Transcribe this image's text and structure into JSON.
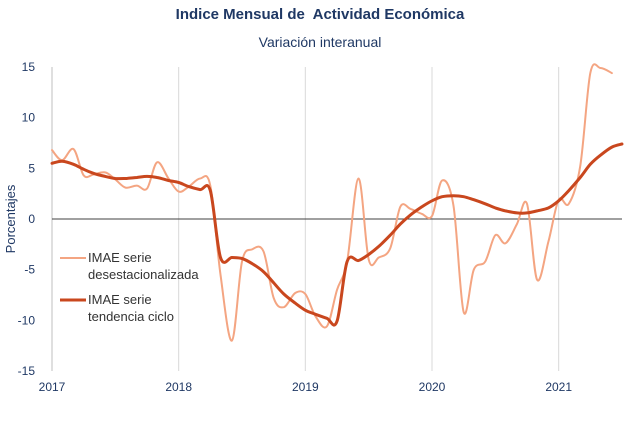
{
  "chart_data": {
    "type": "line",
    "title": "Indice Mensual de  Actividad Económica",
    "subtitle": "Variación interanual",
    "ylabel": "Porcentajes",
    "xlabel": "",
    "ylim": [
      -15,
      15
    ],
    "yticks": [
      15,
      10,
      5,
      0,
      -5,
      -10,
      -15
    ],
    "xlim": [
      2017,
      2021.5
    ],
    "xticks": [
      2017,
      2018,
      2019,
      2020,
      2021
    ],
    "grid": "vertical",
    "series": [
      {
        "name": "IMAE serie desestacionalizada",
        "name_lines": [
          "IMAE serie",
          "desestacionalizada"
        ],
        "color": "#f4a582",
        "points": [
          [
            2017.0,
            6.8
          ],
          [
            2017.08,
            5.8
          ],
          [
            2017.17,
            6.9
          ],
          [
            2017.25,
            4.3
          ],
          [
            2017.33,
            4.4
          ],
          [
            2017.42,
            4.6
          ],
          [
            2017.5,
            3.9
          ],
          [
            2017.58,
            3.1
          ],
          [
            2017.67,
            3.3
          ],
          [
            2017.75,
            3.0
          ],
          [
            2017.83,
            5.6
          ],
          [
            2017.92,
            4.0
          ],
          [
            2018.0,
            2.7
          ],
          [
            2018.08,
            3.2
          ],
          [
            2018.17,
            4.0
          ],
          [
            2018.25,
            3.3
          ],
          [
            2018.33,
            -5.5
          ],
          [
            2018.42,
            -12.0
          ],
          [
            2018.5,
            -4.2
          ],
          [
            2018.58,
            -3.0
          ],
          [
            2018.67,
            -3.2
          ],
          [
            2018.75,
            -7.8
          ],
          [
            2018.83,
            -8.7
          ],
          [
            2018.92,
            -7.3
          ],
          [
            2019.0,
            -7.4
          ],
          [
            2019.08,
            -9.6
          ],
          [
            2019.17,
            -10.6
          ],
          [
            2019.25,
            -7.0
          ],
          [
            2019.33,
            -4.2
          ],
          [
            2019.42,
            4.0
          ],
          [
            2019.5,
            -4.0
          ],
          [
            2019.58,
            -3.8
          ],
          [
            2019.67,
            -2.9
          ],
          [
            2019.75,
            1.2
          ],
          [
            2019.83,
            1.0
          ],
          [
            2019.92,
            0.5
          ],
          [
            2020.0,
            0.3
          ],
          [
            2020.08,
            3.8
          ],
          [
            2020.17,
            1.3
          ],
          [
            2020.25,
            -9.2
          ],
          [
            2020.33,
            -5.0
          ],
          [
            2020.42,
            -4.2
          ],
          [
            2020.5,
            -1.6
          ],
          [
            2020.58,
            -2.4
          ],
          [
            2020.67,
            -0.5
          ],
          [
            2020.75,
            1.5
          ],
          [
            2020.83,
            -6.0
          ],
          [
            2020.92,
            -2.2
          ],
          [
            2021.0,
            1.9
          ],
          [
            2021.08,
            1.5
          ],
          [
            2021.17,
            5.2
          ],
          [
            2021.25,
            14.4
          ],
          [
            2021.33,
            14.9
          ],
          [
            2021.42,
            14.4
          ]
        ]
      },
      {
        "name": "IMAE serie tendencia ciclo",
        "name_lines": [
          "IMAE serie",
          "tendencia ciclo"
        ],
        "color": "#c9471e",
        "points": [
          [
            2017.0,
            5.5
          ],
          [
            2017.08,
            5.7
          ],
          [
            2017.17,
            5.4
          ],
          [
            2017.25,
            4.9
          ],
          [
            2017.33,
            4.5
          ],
          [
            2017.42,
            4.2
          ],
          [
            2017.5,
            4.0
          ],
          [
            2017.58,
            4.0
          ],
          [
            2017.67,
            4.1
          ],
          [
            2017.75,
            4.2
          ],
          [
            2017.83,
            4.1
          ],
          [
            2017.92,
            3.8
          ],
          [
            2018.0,
            3.6
          ],
          [
            2018.08,
            3.2
          ],
          [
            2018.17,
            2.9
          ],
          [
            2018.25,
            2.8
          ],
          [
            2018.33,
            -3.8
          ],
          [
            2018.42,
            -3.8
          ],
          [
            2018.5,
            -3.9
          ],
          [
            2018.58,
            -4.4
          ],
          [
            2018.67,
            -5.2
          ],
          [
            2018.75,
            -6.3
          ],
          [
            2018.83,
            -7.4
          ],
          [
            2018.92,
            -8.3
          ],
          [
            2019.0,
            -9.0
          ],
          [
            2019.08,
            -9.4
          ],
          [
            2019.17,
            -9.8
          ],
          [
            2019.25,
            -10.1
          ],
          [
            2019.33,
            -4.2
          ],
          [
            2019.42,
            -4.1
          ],
          [
            2019.5,
            -3.5
          ],
          [
            2019.58,
            -2.7
          ],
          [
            2019.67,
            -1.6
          ],
          [
            2019.75,
            -0.5
          ],
          [
            2019.83,
            0.4
          ],
          [
            2019.92,
            1.2
          ],
          [
            2020.0,
            1.8
          ],
          [
            2020.08,
            2.2
          ],
          [
            2020.17,
            2.3
          ],
          [
            2020.25,
            2.2
          ],
          [
            2020.33,
            1.9
          ],
          [
            2020.42,
            1.5
          ],
          [
            2020.5,
            1.1
          ],
          [
            2020.58,
            0.8
          ],
          [
            2020.67,
            0.6
          ],
          [
            2020.75,
            0.6
          ],
          [
            2020.83,
            0.8
          ],
          [
            2020.92,
            1.1
          ],
          [
            2021.0,
            1.8
          ],
          [
            2021.08,
            2.8
          ],
          [
            2021.17,
            4.1
          ],
          [
            2021.25,
            5.4
          ],
          [
            2021.33,
            6.3
          ],
          [
            2021.42,
            7.1
          ],
          [
            2021.5,
            7.4
          ]
        ]
      }
    ]
  }
}
